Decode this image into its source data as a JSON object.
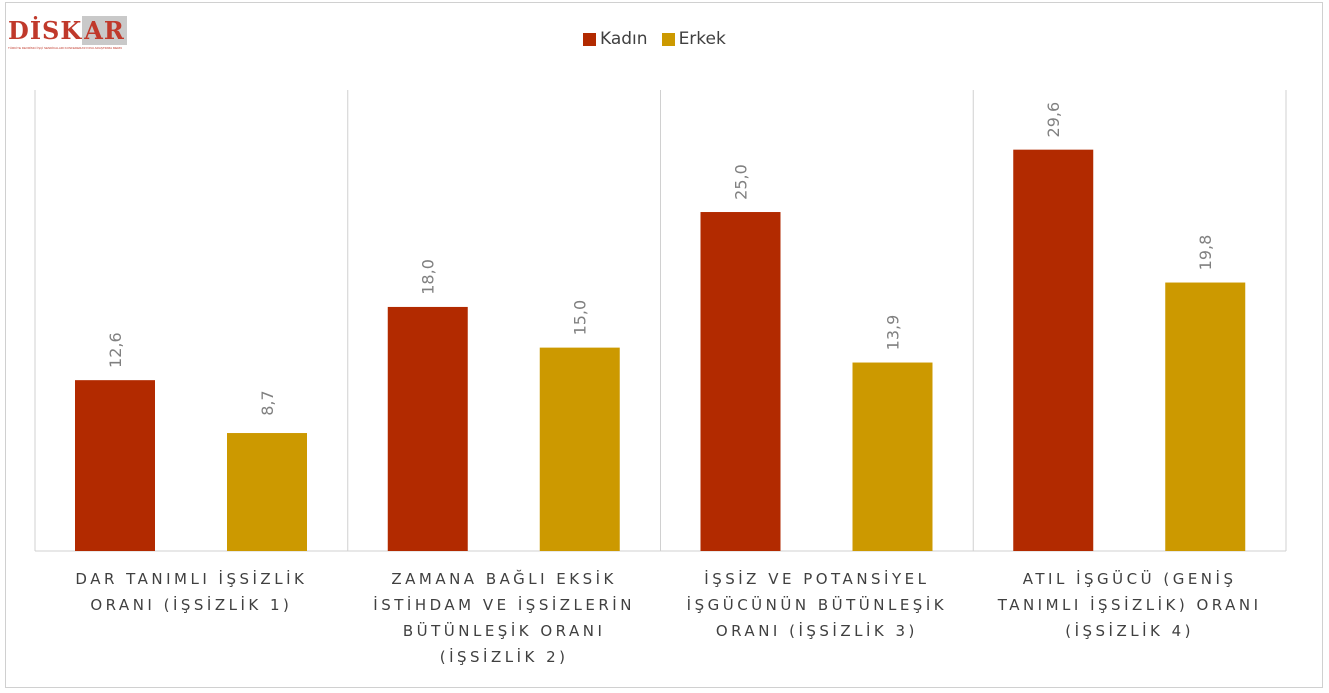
{
  "logo": {
    "word_main": "DİSK",
    "word_highlight": "AR",
    "tagline": "TÜRKİYE DEVRİMCİ İŞÇİ SENDİKALARI KONFEDERASYONU ARAŞTIRMA MERKEZİ"
  },
  "colors": {
    "kadin": "#b22a00",
    "erkek": "#cc9900",
    "axis": "#d0d0d0",
    "label": "#808080"
  },
  "chart_data": {
    "type": "bar",
    "categories": [
      [
        "DAR TANIMLI İŞSİZLİK",
        "ORANI (İŞSİZLİK 1)"
      ],
      [
        "ZAMANA BAĞLI EKSİK",
        "İSTİHDAM VE İŞSİZLERİN",
        "BÜTÜNLEŞİK ORANI",
        "(İŞSİZLİK 2)"
      ],
      [
        "İŞSİZ VE POTANSİYEL",
        "İŞGÜCÜNÜN BÜTÜNLEŞİK",
        "ORANI (İŞSİZLİK 3)"
      ],
      [
        "ATIL İŞGÜCÜ (GENİŞ",
        "TANIMLI İŞSİZLİK) ORANI",
        "(İŞSİZLİK 4)"
      ]
    ],
    "series": [
      {
        "name": "Kadın",
        "values": [
          12.6,
          18.0,
          25.0,
          29.6
        ],
        "labels": [
          "12,6",
          "18,0",
          "25,0",
          "29,6"
        ]
      },
      {
        "name": "Erkek",
        "values": [
          8.7,
          15.0,
          13.9,
          19.8
        ],
        "labels": [
          "8,7",
          "15,0",
          "13,9",
          "19,8"
        ]
      }
    ],
    "ylim": [
      0,
      34.0
    ],
    "legend_position": "top-center",
    "grid": false
  }
}
